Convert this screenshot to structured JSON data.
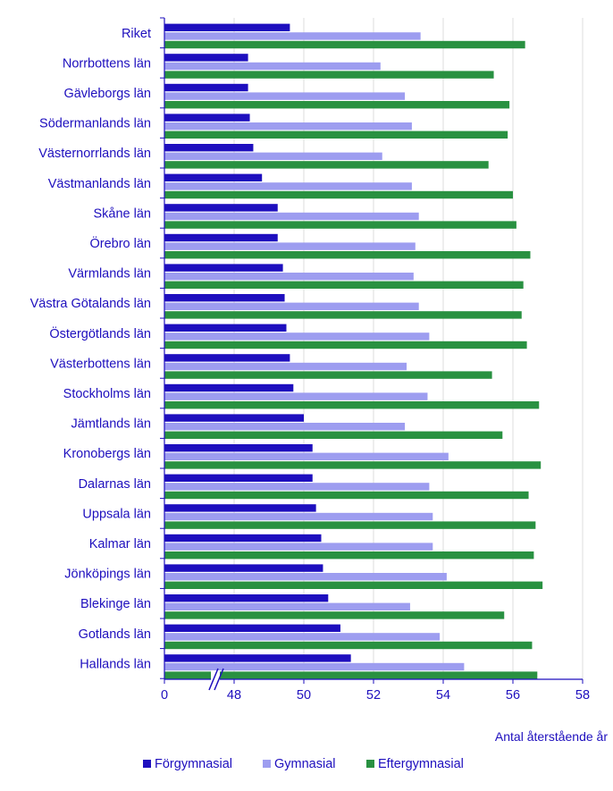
{
  "chart_data": {
    "type": "bar",
    "orientation": "horizontal",
    "title": "",
    "xlabel": "Antal återstående år",
    "ylabel": "",
    "xlim": [
      46,
      58
    ],
    "axis_break": true,
    "axis_ticks": [
      "0",
      "48",
      "50",
      "52",
      "54",
      "56",
      "58"
    ],
    "grid": true,
    "legend_position": "bottom",
    "categories": [
      "Riket",
      "Norrbottens län",
      "Gävleborgs län",
      "Södermanlands län",
      "Västernorrlands län",
      "Västmanlands län",
      "Skåne län",
      "Örebro län",
      "Värmlands län",
      "Västra Götalands län",
      "Östergötlands län",
      "Västerbottens län",
      "Stockholms län",
      "Jämtlands län",
      "Kronobergs län",
      "Dalarnas län",
      "Uppsala län",
      "Kalmar län",
      "Jönköpings län",
      "Blekinge län",
      "Gotlands län",
      "Hallands län"
    ],
    "series": [
      {
        "name": "Förgymnasial",
        "color": "#1e0fbe",
        "values": [
          49.6,
          48.4,
          48.4,
          48.45,
          48.55,
          48.8,
          49.25,
          49.25,
          49.4,
          49.45,
          49.5,
          49.6,
          49.7,
          50.0,
          50.25,
          50.25,
          50.35,
          50.5,
          50.55,
          50.7,
          51.05,
          51.35
        ]
      },
      {
        "name": "Gymnasial",
        "color": "#9d9df0",
        "values": [
          53.35,
          52.2,
          52.9,
          53.1,
          52.25,
          53.1,
          53.3,
          53.2,
          53.15,
          53.3,
          53.6,
          52.95,
          53.55,
          52.9,
          54.15,
          53.6,
          53.7,
          53.7,
          54.1,
          53.05,
          53.9,
          54.6
        ]
      },
      {
        "name": "Eftergymnasial",
        "color": "#299141",
        "values": [
          56.35,
          55.45,
          55.9,
          55.85,
          55.3,
          56.0,
          56.1,
          56.5,
          56.3,
          56.25,
          56.4,
          55.4,
          56.75,
          55.7,
          56.8,
          56.45,
          56.65,
          56.6,
          56.85,
          55.75,
          56.55,
          56.7
        ]
      }
    ]
  }
}
